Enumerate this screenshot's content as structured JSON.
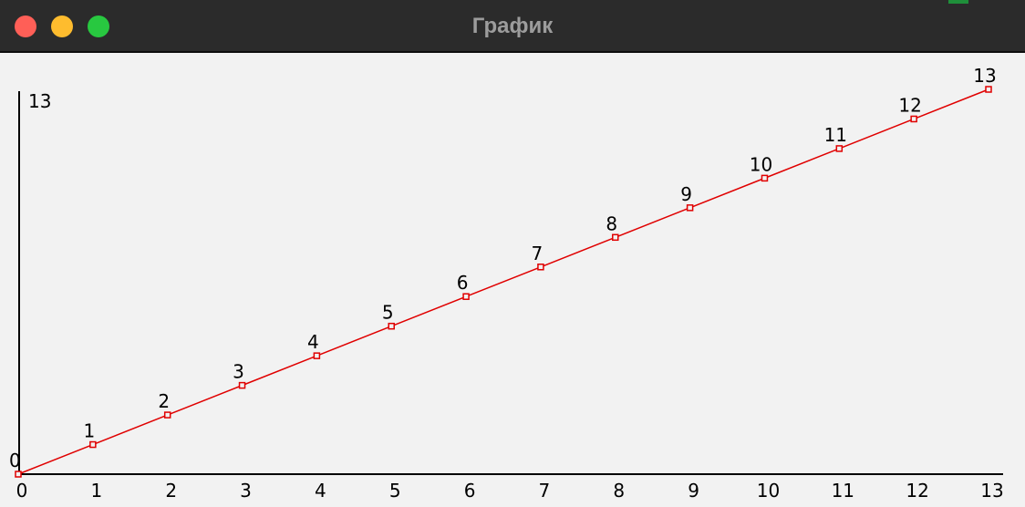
{
  "window": {
    "title": "График"
  },
  "chart_data": {
    "type": "line",
    "x": [
      0,
      1,
      2,
      3,
      4,
      5,
      6,
      7,
      8,
      9,
      10,
      11,
      12,
      13
    ],
    "x_tick_labels": [
      "0",
      "1",
      "2",
      "3",
      "4",
      "5",
      "6",
      "7",
      "8",
      "9",
      "10",
      "11",
      "12",
      "13"
    ],
    "series": [
      {
        "values": [
          0,
          1,
          2,
          3,
          4,
          5,
          6,
          7,
          8,
          9,
          10,
          11,
          12,
          13
        ],
        "data_labels": [
          "0",
          "1",
          "2",
          "3",
          "4",
          "5",
          "6",
          "7",
          "8",
          "9",
          "10",
          "11",
          "12",
          "13"
        ],
        "color": "#e00000"
      }
    ],
    "y_axis_labels": [
      "0",
      "13"
    ],
    "xlim": [
      0,
      13
    ],
    "ylim": [
      0,
      13
    ],
    "grid": false,
    "axis_color": "#000000"
  }
}
